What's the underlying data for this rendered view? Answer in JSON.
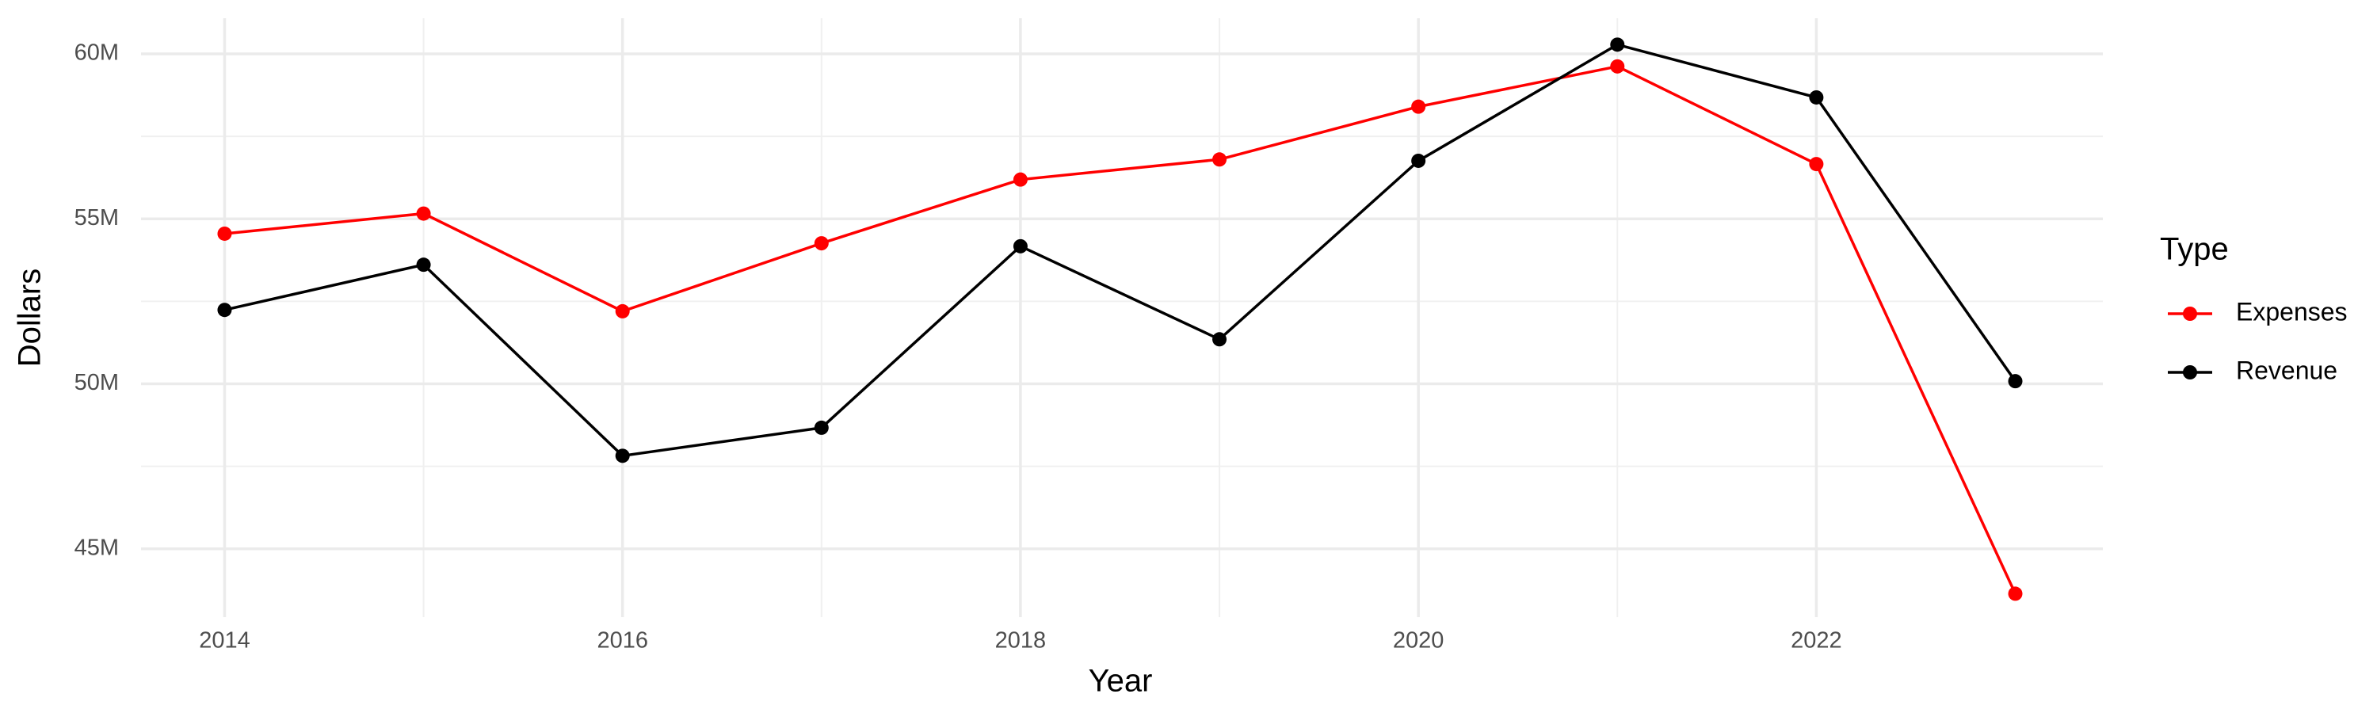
{
  "chart_data": {
    "type": "line",
    "x_label": "Year",
    "y_label": "Dollars",
    "legend_title": "Type",
    "legend_position": "right",
    "grid": true,
    "x": [
      2014,
      2015,
      2016,
      2017,
      2018,
      2019,
      2020,
      2021,
      2022,
      2023
    ],
    "series": [
      {
        "name": "Expenses",
        "color": "#ff0000",
        "values": [
          54550000,
          55160000,
          52200000,
          54260000,
          56190000,
          56800000,
          58400000,
          59620000,
          56660000,
          43640000
        ]
      },
      {
        "name": "Revenue",
        "color": "#000000",
        "values": [
          52240000,
          53610000,
          47820000,
          48670000,
          54170000,
          51350000,
          56760000,
          60280000,
          58680000,
          50080000
        ]
      }
    ],
    "xlim": [
      2013.58,
      2023.44
    ],
    "xticks": [
      2014,
      2016,
      2018,
      2020,
      2022
    ],
    "ylim": [
      42930000,
      61080000
    ],
    "yticks": [
      {
        "value": 45000000,
        "label": "45M"
      },
      {
        "value": 50000000,
        "label": "50M"
      },
      {
        "value": 55000000,
        "label": "55M"
      },
      {
        "value": 60000000,
        "label": "60M"
      }
    ]
  }
}
